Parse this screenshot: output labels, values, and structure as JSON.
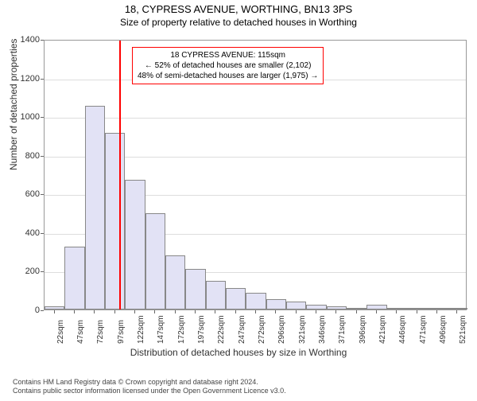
{
  "title": "18, CYPRESS AVENUE, WORTHING, BN13 3PS",
  "subtitle": "Size of property relative to detached houses in Worthing",
  "y_axis_label": "Number of detached properties",
  "x_axis_label": "Distribution of detached houses by size in Worthing",
  "chart": {
    "type": "histogram",
    "bar_color": "#e2e2f5",
    "bar_border_color": "#888",
    "grid_color": "#dddddd",
    "background_color": "#ffffff",
    "plot_border_color": "#999999",
    "ylim": [
      0,
      1400
    ],
    "yticks": [
      0,
      200,
      400,
      600,
      800,
      1000,
      1200,
      1400
    ],
    "xtick_labels": [
      "22sqm",
      "47sqm",
      "72sqm",
      "97sqm",
      "122sqm",
      "147sqm",
      "172sqm",
      "197sqm",
      "222sqm",
      "247sqm",
      "272sqm",
      "296sqm",
      "321sqm",
      "346sqm",
      "371sqm",
      "396sqm",
      "421sqm",
      "446sqm",
      "471sqm",
      "496sqm",
      "521sqm"
    ],
    "bars": [
      18,
      325,
      1055,
      915,
      670,
      500,
      280,
      210,
      150,
      110,
      85,
      55,
      40,
      25,
      18,
      10,
      25,
      5,
      3,
      3,
      3
    ],
    "marker_line_index": 3.72,
    "marker_line_color": "#ff0000",
    "annotation_border_color": "#ff0000"
  },
  "annotation": {
    "line1": "18 CYPRESS AVENUE: 115sqm",
    "line2": "← 52% of detached houses are smaller (2,102)",
    "line3": "48% of semi-detached houses are larger (1,975) →"
  },
  "footer": {
    "line1": "Contains HM Land Registry data © Crown copyright and database right 2024.",
    "line2": "Contains public sector information licensed under the Open Government Licence v3.0."
  }
}
